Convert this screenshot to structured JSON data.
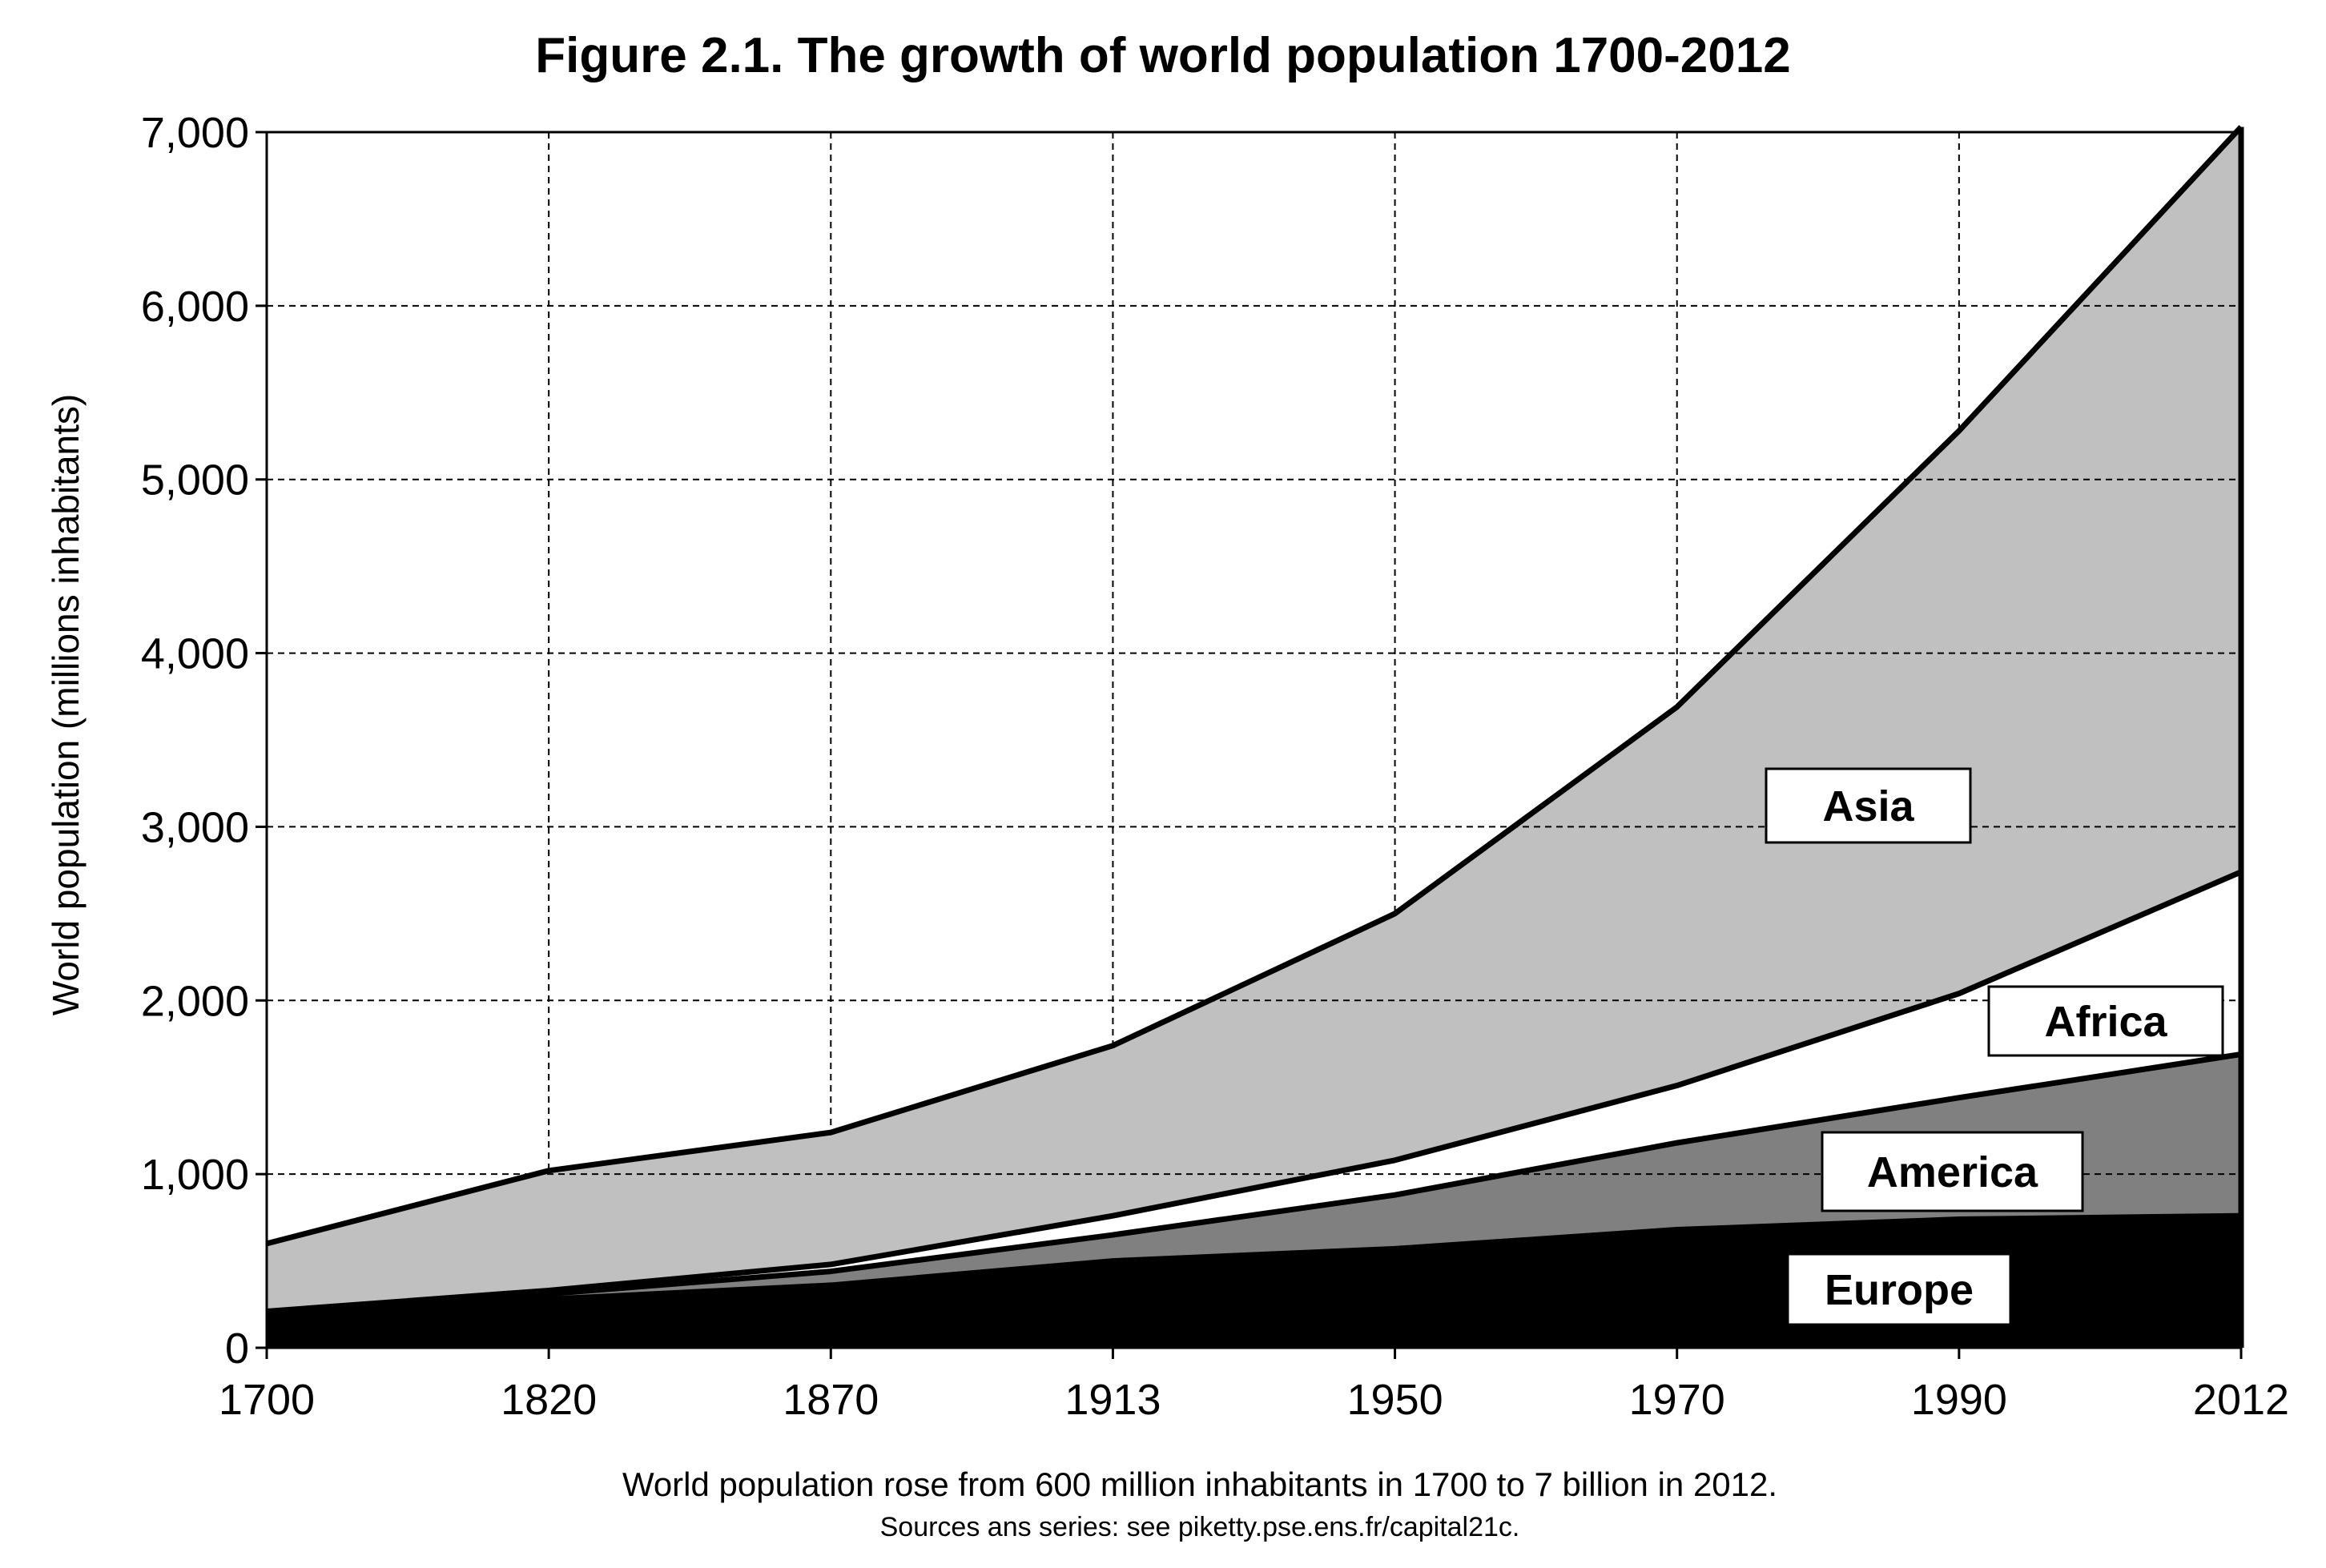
{
  "chart_data": {
    "type": "area",
    "stacked": true,
    "title": "Figure 2.1. The growth of world population 1700-2012",
    "ylabel": "World population (millions inhabitants)",
    "xlabel": "",
    "x": [
      "1700",
      "1820",
      "1870",
      "1913",
      "1950",
      "1970",
      "1990",
      "2012"
    ],
    "x_spacing": "equal",
    "ylim": [
      0,
      7000
    ],
    "yticks": [
      0,
      1000,
      2000,
      3000,
      4000,
      5000,
      6000,
      7000
    ],
    "ytick_labels": [
      "0",
      "1,000",
      "2,000",
      "3,000",
      "4,000",
      "5,000",
      "6,000",
      "7,000"
    ],
    "grid": true,
    "series": [
      {
        "name": "Europe",
        "color": "#000000",
        "values": [
          170,
          280,
          360,
          500,
          570,
          680,
          740,
          760
        ]
      },
      {
        "name": "America",
        "color": "#808080",
        "values": [
          20,
          30,
          80,
          150,
          310,
          500,
          700,
          930
        ]
      },
      {
        "name": "Africa",
        "color": "#ffffff",
        "values": [
          20,
          20,
          40,
          110,
          200,
          330,
          600,
          1050
        ]
      },
      {
        "name": "Asia",
        "color": "#c0c0c0",
        "values": [
          390,
          690,
          760,
          980,
          1420,
          2180,
          3240,
          4290
        ]
      }
    ],
    "caption": "World population  rose from 600 million  inhabitants  in 1700 to 7 billion  in 2012.",
    "source": "Sources ans series: see piketty.pse.ens.fr/capital21c."
  }
}
